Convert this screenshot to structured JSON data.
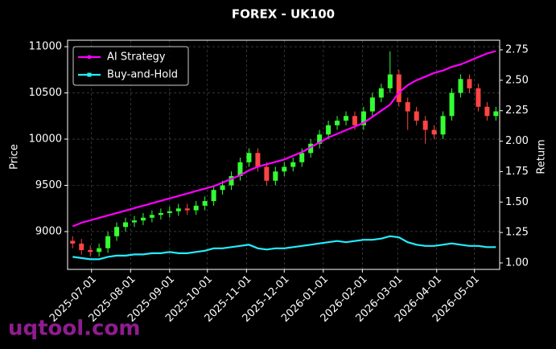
{
  "chart_data": {
    "type": "candlestick",
    "title": "FOREX - UK100",
    "y_label": "Price",
    "y2_label": "Return",
    "x": [
      "2025-06-16",
      "2025-06-23",
      "2025-06-30",
      "2025-07-07",
      "2025-07-14",
      "2025-07-21",
      "2025-07-28",
      "2025-08-04",
      "2025-08-11",
      "2025-08-18",
      "2025-08-25",
      "2025-09-01",
      "2025-09-08",
      "2025-09-15",
      "2025-09-22",
      "2025-09-29",
      "2025-10-06",
      "2025-10-13",
      "2025-10-20",
      "2025-10-27",
      "2025-11-03",
      "2025-11-10",
      "2025-11-17",
      "2025-11-24",
      "2025-12-01",
      "2025-12-08",
      "2025-12-15",
      "2025-12-22",
      "2025-12-29",
      "2026-01-05",
      "2026-01-12",
      "2026-01-19",
      "2026-01-26",
      "2026-02-02",
      "2026-02-09",
      "2026-02-16",
      "2026-02-23",
      "2026-03-02",
      "2026-03-09",
      "2026-03-16",
      "2026-03-23",
      "2026-03-30",
      "2026-04-06",
      "2026-04-13",
      "2026-04-20",
      "2026-04-27",
      "2026-05-04",
      "2026-05-11",
      "2026-05-18"
    ],
    "open": [
      8900,
      8870,
      8800,
      8780,
      8820,
      8950,
      9050,
      9100,
      9120,
      9150,
      9180,
      9200,
      9220,
      9250,
      9230,
      9280,
      9330,
      9450,
      9500,
      9600,
      9750,
      9850,
      9700,
      9550,
      9650,
      9700,
      9750,
      9850,
      9950,
      10050,
      10150,
      10200,
      10250,
      10150,
      10300,
      10450,
      10550,
      10700,
      10400,
      10300,
      10200,
      10100,
      10050,
      10250,
      10500,
      10650,
      10550,
      10350,
      10250
    ],
    "high": [
      8950,
      8920,
      8850,
      8870,
      9000,
      9100,
      9150,
      9170,
      9200,
      9230,
      9250,
      9270,
      9300,
      9300,
      9330,
      9380,
      9500,
      9550,
      9650,
      9800,
      9900,
      9900,
      9750,
      9700,
      9750,
      9800,
      9900,
      10000,
      10100,
      10200,
      10250,
      10300,
      10300,
      10350,
      10500,
      10600,
      10950,
      10750,
      10450,
      10350,
      10250,
      10150,
      10300,
      10550,
      10700,
      10700,
      10600,
      10400,
      10350
    ],
    "low": [
      8820,
      8750,
      8730,
      8730,
      8770,
      8900,
      9000,
      9050,
      9070,
      9100,
      9130,
      9150,
      9170,
      9180,
      9180,
      9230,
      9280,
      9400,
      9450,
      9550,
      9700,
      9650,
      9500,
      9500,
      9600,
      9650,
      9700,
      9800,
      9900,
      10000,
      10100,
      10150,
      10100,
      10100,
      10250,
      10400,
      10500,
      10350,
      10100,
      10150,
      9950,
      10000,
      10000,
      10200,
      10450,
      10500,
      10300,
      10200,
      10200
    ],
    "close": [
      8870,
      8800,
      8780,
      8820,
      8950,
      9050,
      9100,
      9120,
      9150,
      9180,
      9200,
      9220,
      9250,
      9230,
      9280,
      9330,
      9450,
      9500,
      9600,
      9750,
      9850,
      9700,
      9550,
      9650,
      9700,
      9750,
      9850,
      9950,
      10050,
      10150,
      10200,
      10250,
      10150,
      10300,
      10450,
      10550,
      10700,
      10400,
      10300,
      10200,
      10100,
      10050,
      10250,
      10500,
      10650,
      10550,
      10350,
      10250,
      10300
    ],
    "up_color": "#33ff33",
    "down_color": "#ff4444",
    "series": [
      {
        "name": "AI Strategy",
        "color": "#ff00ff",
        "axis": "y2",
        "marker": "circle",
        "values": [
          1.3,
          1.33,
          1.35,
          1.37,
          1.39,
          1.41,
          1.43,
          1.45,
          1.47,
          1.49,
          1.51,
          1.53,
          1.55,
          1.57,
          1.59,
          1.61,
          1.63,
          1.66,
          1.69,
          1.72,
          1.76,
          1.79,
          1.81,
          1.83,
          1.85,
          1.88,
          1.91,
          1.95,
          1.99,
          2.03,
          2.06,
          2.09,
          2.12,
          2.15,
          2.2,
          2.25,
          2.3,
          2.4,
          2.46,
          2.5,
          2.53,
          2.56,
          2.58,
          2.61,
          2.63,
          2.66,
          2.69,
          2.72,
          2.74
        ]
      },
      {
        "name": "Buy-and-Hold",
        "color": "#22eeff",
        "axis": "y2",
        "marker": "square",
        "values": [
          1.05,
          1.04,
          1.03,
          1.03,
          1.05,
          1.06,
          1.06,
          1.07,
          1.07,
          1.08,
          1.08,
          1.09,
          1.08,
          1.08,
          1.09,
          1.1,
          1.12,
          1.12,
          1.13,
          1.14,
          1.15,
          1.12,
          1.11,
          1.12,
          1.12,
          1.13,
          1.14,
          1.15,
          1.16,
          1.17,
          1.18,
          1.17,
          1.18,
          1.19,
          1.19,
          1.2,
          1.22,
          1.21,
          1.17,
          1.15,
          1.14,
          1.14,
          1.15,
          1.16,
          1.15,
          1.14,
          1.14,
          1.13,
          1.13
        ]
      }
    ],
    "xlim": [
      "2025-06-12",
      "2026-05-21"
    ],
    "xticks": [
      "2025-07-01",
      "2025-08-01",
      "2025-09-01",
      "2025-10-01",
      "2025-11-01",
      "2025-12-01",
      "2026-01-01",
      "2026-02-01",
      "2026-03-01",
      "2026-04-01",
      "2026-05-01"
    ],
    "ylim": [
      8591,
      11070
    ],
    "yticks": [
      9000,
      9500,
      10000,
      10500,
      11000
    ],
    "y2lim": [
      0.947,
      2.829
    ],
    "y2ticks": [
      {
        "value": 1.0,
        "label": "1.00"
      },
      {
        "value": 1.25,
        "label": "1.25"
      },
      {
        "value": 1.5,
        "label": "1.50"
      },
      {
        "value": 1.75,
        "label": "1.75"
      },
      {
        "value": 2.0,
        "label": "2.00"
      },
      {
        "value": 2.25,
        "label": "2.25"
      },
      {
        "value": 2.5,
        "label": "2.50"
      },
      {
        "value": 2.75,
        "label": "2.75"
      }
    ],
    "grid": true,
    "legend": "upper-left"
  },
  "watermark": "uqtool.com"
}
